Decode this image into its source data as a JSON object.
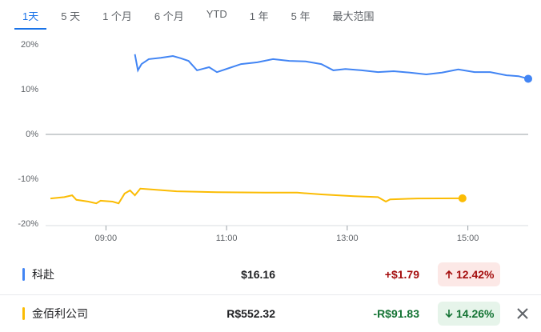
{
  "tabs": [
    "1天",
    "5 天",
    "1 个月",
    "6 个月",
    "YTD",
    "1 年",
    "5 年",
    "最大范围"
  ],
  "chart_data": {
    "type": "line",
    "xlim": [
      8,
      16
    ],
    "xticks": [
      {
        "value": 9,
        "label": "09:00"
      },
      {
        "value": 11,
        "label": "11:00"
      },
      {
        "value": 13,
        "label": "13:00"
      },
      {
        "value": 15,
        "label": "15:00"
      }
    ],
    "ylim": [
      -20,
      20
    ],
    "yticks": [
      {
        "value": 20,
        "label": "20%"
      },
      {
        "value": 10,
        "label": "10%"
      },
      {
        "value": 0,
        "label": "0%"
      },
      {
        "value": -10,
        "label": "-10%"
      },
      {
        "value": -20,
        "label": "-20%"
      }
    ],
    "series": [
      {
        "name": "科赴",
        "color": "#4285f4",
        "x": [
          9.48,
          9.53,
          9.59,
          9.71,
          9.91,
          10.11,
          10.24,
          10.37,
          10.51,
          10.71,
          10.84,
          11.04,
          11.24,
          11.51,
          11.77,
          12.04,
          12.31,
          12.57,
          12.77,
          12.97,
          13.24,
          13.51,
          13.77,
          14.04,
          14.31,
          14.57,
          14.84,
          15.11,
          15.37,
          15.64,
          15.84,
          16.0
        ],
        "values": [
          17.9,
          14.3,
          15.7,
          16.8,
          17.1,
          17.5,
          17.0,
          16.4,
          14.3,
          15.0,
          13.9,
          14.8,
          15.7,
          16.1,
          16.8,
          16.4,
          16.3,
          15.7,
          14.3,
          14.6,
          14.3,
          13.9,
          14.1,
          13.8,
          13.4,
          13.8,
          14.5,
          13.9,
          13.9,
          13.2,
          13.0,
          12.42
        ]
      },
      {
        "name": "金佰利公司",
        "color": "#fbbc04",
        "x": [
          8.08,
          8.31,
          8.44,
          8.51,
          8.71,
          8.84,
          8.91,
          9.11,
          9.21,
          9.31,
          9.4,
          9.48,
          9.57,
          9.77,
          10.17,
          10.84,
          11.64,
          12.17,
          12.57,
          13.11,
          13.51,
          13.64,
          13.71,
          14.17,
          14.91
        ],
        "values": [
          -14.3,
          -14.0,
          -13.6,
          -14.6,
          -15.0,
          -15.4,
          -14.8,
          -15.0,
          -15.4,
          -13.2,
          -12.5,
          -13.6,
          -12.1,
          -12.3,
          -12.7,
          -12.9,
          -13.0,
          -13.0,
          -13.4,
          -13.8,
          -14.0,
          -15.0,
          -14.5,
          -14.3,
          -14.26
        ]
      }
    ]
  },
  "legend_rows": [
    {
      "price": "$16.16",
      "change": "+$1.79",
      "percent": "12.42%"
    },
    {
      "price": "R$552.32",
      "change": "-R$91.83",
      "percent": "14.26%"
    }
  ]
}
